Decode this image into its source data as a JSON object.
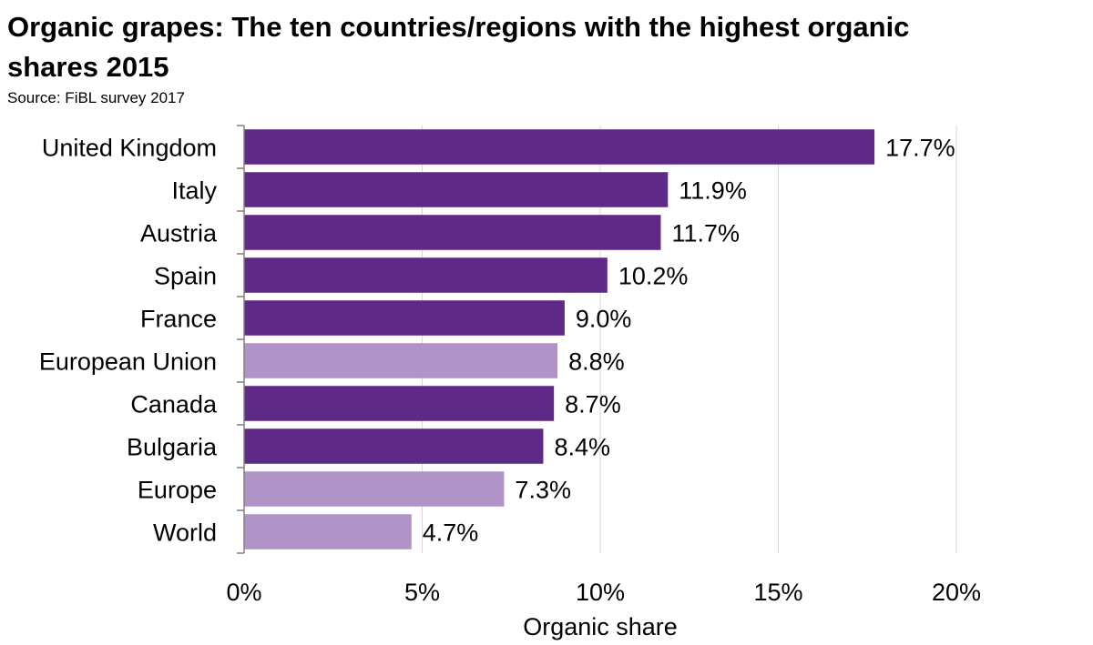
{
  "title": "Organic grapes: The ten countries/regions with the highest organic shares 2015",
  "subtitle": "Source: FiBL survey 2017",
  "chart_data": {
    "type": "bar",
    "orientation": "horizontal",
    "categories": [
      "United Kingdom",
      "Italy",
      "Austria",
      "Spain",
      "France",
      "European Union",
      "Canada",
      "Bulgaria",
      "Europe",
      "World"
    ],
    "values": [
      17.7,
      11.9,
      11.7,
      10.2,
      9.0,
      8.8,
      8.7,
      8.4,
      7.3,
      4.7
    ],
    "value_labels": [
      "17.7%",
      "11.9%",
      "11.7%",
      "10.2%",
      "9.0%",
      "8.8%",
      "8.7%",
      "8.4%",
      "7.3%",
      "4.7%"
    ],
    "highlight": [
      false,
      false,
      false,
      false,
      false,
      true,
      false,
      false,
      true,
      true
    ],
    "xlim": [
      0,
      20
    ],
    "x_ticks": [
      0,
      5,
      10,
      15,
      20
    ],
    "x_tick_labels": [
      "0%",
      "5%",
      "10%",
      "15%",
      "20%"
    ],
    "xlabel": "Organic share",
    "ylabel": "",
    "grid": true,
    "colors": {
      "country": "#5f2a87",
      "aggregate": "#b094c7",
      "grid": "#d9d9d9",
      "axis": "#808080"
    }
  }
}
